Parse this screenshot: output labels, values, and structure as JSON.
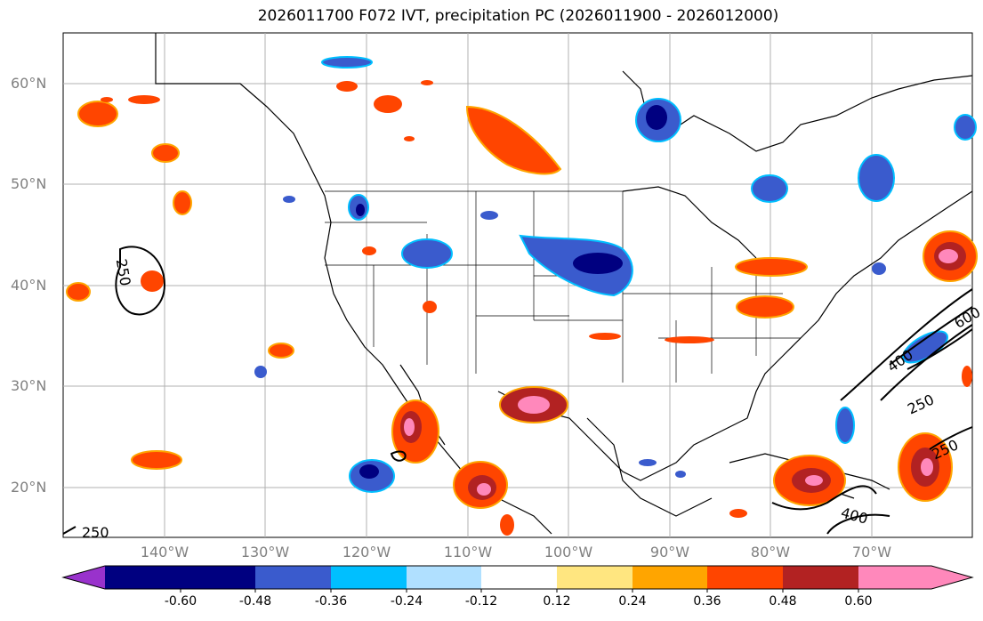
{
  "title": "2026011700 F072 IVT, precipitation PC (2026011900 - 2026012000)",
  "lat_labels": [
    "60°N",
    "50°N",
    "40°N",
    "30°N",
    "20°N"
  ],
  "lon_labels": [
    "140°W",
    "130°W",
    "120°W",
    "110°W",
    "100°W",
    "90°W",
    "80°W",
    "70°W"
  ],
  "ivt_contour_labels": [
    "250",
    "250",
    "250",
    "250",
    "400",
    "400",
    "600"
  ],
  "colorbar": {
    "tick_labels": [
      "-0.60",
      "-0.48",
      "-0.36",
      "-0.24",
      "-0.12",
      "0.12",
      "0.24",
      "0.36",
      "0.48",
      "0.60"
    ],
    "colors": [
      "#9932cc",
      "#000080",
      "#3a5bcd",
      "#00bfff",
      "#b0e0ff",
      "#ffffff",
      "#ffe680",
      "#ffa500",
      "#ff4500",
      "#b22222",
      "#ff88bb"
    ]
  }
}
